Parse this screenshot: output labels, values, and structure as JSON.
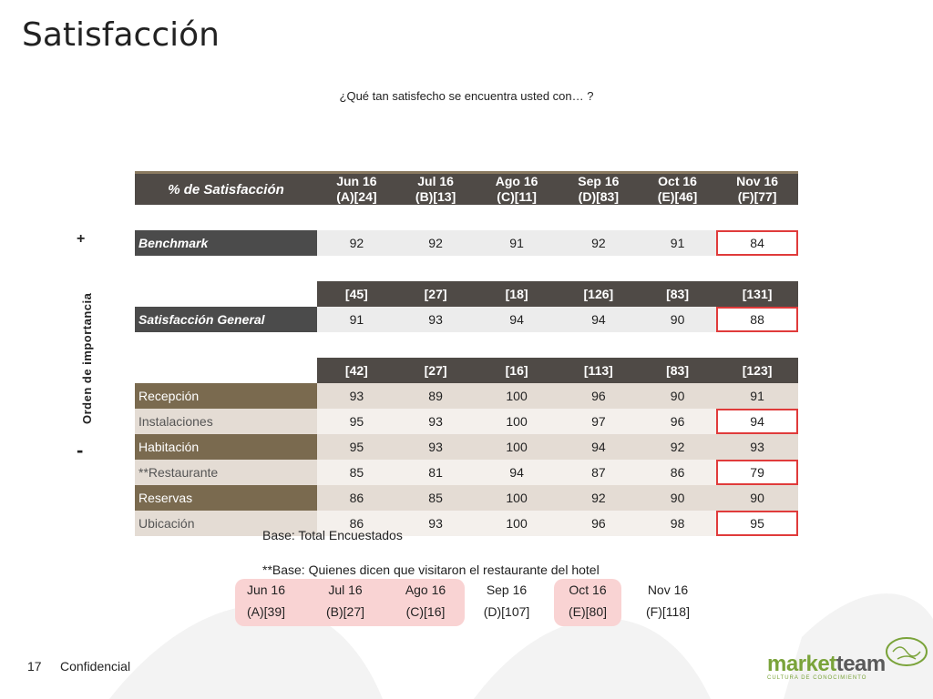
{
  "title": "Satisfacción",
  "question": "¿Qué tan satisfecho se encuentra usted con… ?",
  "side_label": "Orden de importancia",
  "plus": "+",
  "minus": "-",
  "table": {
    "header_label": "% de Satisfacción",
    "columns": [
      {
        "month": "Jun 16",
        "code": "(A)[24]"
      },
      {
        "month": "Jul 16",
        "code": "(B)[13]"
      },
      {
        "month": "Ago 16",
        "code": "(C)[11]"
      },
      {
        "month": "Sep 16",
        "code": "(D)[83]"
      },
      {
        "month": "Oct 16",
        "code": "(E)[46]"
      },
      {
        "month": "Nov 16",
        "code": "(F)[77]"
      }
    ],
    "benchmark": {
      "label": "Benchmark",
      "values": [
        "92",
        "92",
        "91",
        "92",
        "91",
        "84"
      ]
    },
    "counts_general": [
      "[45]",
      "[27]",
      "[18]",
      "[126]",
      "[83]",
      "[131]"
    ],
    "general": {
      "label": "Satisfacción General",
      "values": [
        "91",
        "93",
        "94",
        "94",
        "90",
        "88"
      ]
    },
    "counts_items": [
      "[42]",
      "[27]",
      "[16]",
      "[113]",
      "[83]",
      "[123]"
    ],
    "rows": [
      {
        "label": "Recepción",
        "values": [
          "93",
          "89",
          "100",
          "96",
          "90",
          "91"
        ]
      },
      {
        "label": "Instalaciones",
        "values": [
          "95",
          "93",
          "100",
          "97",
          "96",
          "94"
        ]
      },
      {
        "label": "Habitación",
        "values": [
          "95",
          "93",
          "100",
          "94",
          "92",
          "93"
        ]
      },
      {
        "label": "**Restaurante",
        "values": [
          "85",
          "81",
          "94",
          "87",
          "86",
          "79"
        ]
      },
      {
        "label": "Reservas",
        "values": [
          "86",
          "85",
          "100",
          "92",
          "90",
          "90"
        ]
      },
      {
        "label": "Ubicación",
        "values": [
          "86",
          "93",
          "100",
          "96",
          "98",
          "95"
        ]
      }
    ]
  },
  "base1": "Base: Total Encuestados",
  "base2": "**Base: Quienes dicen que visitaron el restaurante del hotel",
  "footer_columns": [
    {
      "month": "Jun 16",
      "code": "(A)[39]"
    },
    {
      "month": "Jul 16",
      "code": "(B)[27]"
    },
    {
      "month": "Ago 16",
      "code": "(C)[16]"
    },
    {
      "month": "Sep 16",
      "code": "(D)[107]"
    },
    {
      "month": "Oct 16",
      "code": "(E)[80]"
    },
    {
      "month": "Nov 16",
      "code": "(F)[118]"
    }
  ],
  "page_number": "17",
  "confidential": "Confidencial",
  "logo": {
    "name_a": "market",
    "name_b": "team",
    "tagline": "CULTURA DE CONOCIMIENTO"
  },
  "colors": {
    "accent_olive": "#7a6a4f",
    "dark_header": "#4f4a46",
    "highlight_red": "#e03b3b",
    "pill_pink": "#f9d3d3",
    "logo_green": "#7aa33a"
  }
}
